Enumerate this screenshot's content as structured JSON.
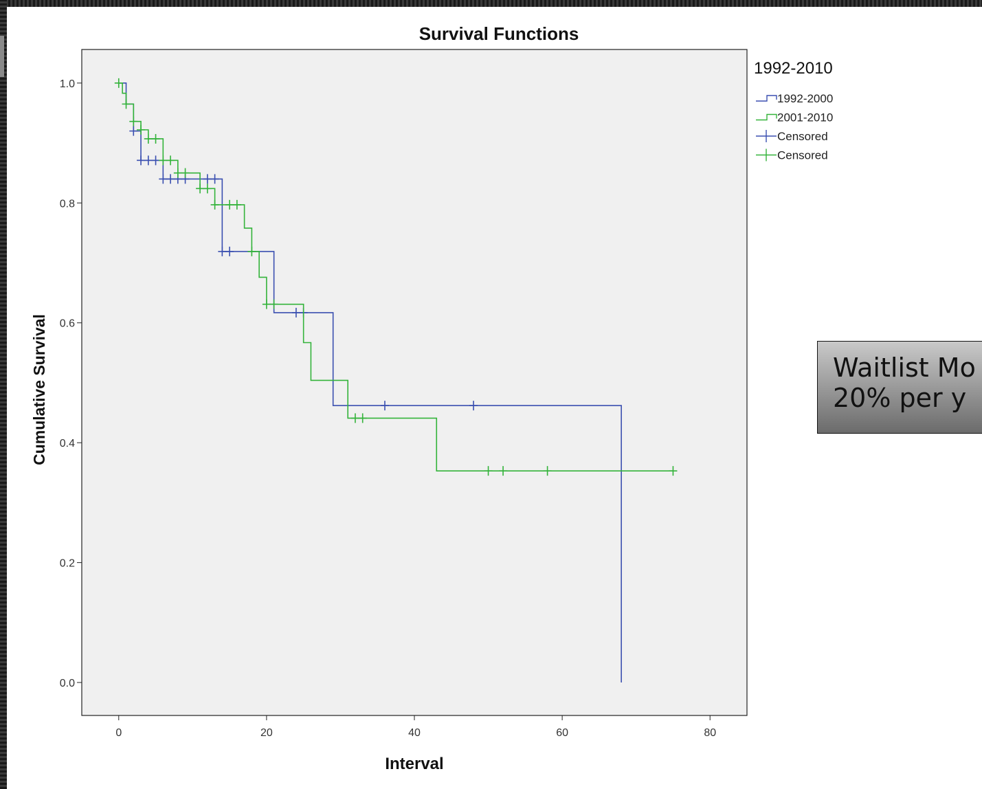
{
  "chart_data": {
    "type": "line",
    "subtype": "kaplan-meier step",
    "title": "Survival Functions",
    "xlabel": "Interval",
    "ylabel": "Cumulative Survival",
    "xlim": [
      -5,
      85
    ],
    "ylim": [
      -0.055,
      1.056
    ],
    "xticks": [
      0,
      20,
      40,
      60,
      80
    ],
    "yticks": [
      0.0,
      0.2,
      0.4,
      0.6,
      0.8,
      1.0
    ],
    "xtick_labels": [
      "0",
      "20",
      "40",
      "60",
      "80"
    ],
    "ytick_labels": [
      "0.0",
      "0.2",
      "0.4",
      "0.6",
      "0.8",
      "1.0"
    ],
    "grid": false,
    "background": "#f0f0f0",
    "legend_title": "1992-2010",
    "legend_position": "right",
    "series": [
      {
        "name": "1992-2000",
        "color": "#3a4fb0",
        "steps": [
          [
            0,
            1.0
          ],
          [
            1,
            0.965
          ],
          [
            2,
            0.92
          ],
          [
            3,
            0.871
          ],
          [
            6,
            0.84
          ],
          [
            14,
            0.719
          ],
          [
            21,
            0.617
          ],
          [
            29,
            0.462
          ],
          [
            68,
            0.0
          ]
        ],
        "censored": [
          [
            2,
            0.92
          ],
          [
            3,
            0.871
          ],
          [
            4,
            0.871
          ],
          [
            5,
            0.871
          ],
          [
            6,
            0.84
          ],
          [
            7,
            0.84
          ],
          [
            8,
            0.84
          ],
          [
            9,
            0.84
          ],
          [
            12,
            0.84
          ],
          [
            13,
            0.84
          ],
          [
            14,
            0.719
          ],
          [
            15,
            0.719
          ],
          [
            24,
            0.617
          ],
          [
            25,
            0.617
          ],
          [
            36,
            0.462
          ],
          [
            48,
            0.462
          ]
        ]
      },
      {
        "name": "2001-2010",
        "color": "#33b33a",
        "steps": [
          [
            0,
            1.0
          ],
          [
            0.5,
            0.983
          ],
          [
            1,
            0.965
          ],
          [
            2,
            0.936
          ],
          [
            3,
            0.922
          ],
          [
            4,
            0.907
          ],
          [
            6,
            0.871
          ],
          [
            8,
            0.85
          ],
          [
            11,
            0.824
          ],
          [
            13,
            0.797
          ],
          [
            17,
            0.758
          ],
          [
            18,
            0.719
          ],
          [
            19,
            0.676
          ],
          [
            20,
            0.631
          ],
          [
            25,
            0.567
          ],
          [
            26,
            0.504
          ],
          [
            31,
            0.441
          ],
          [
            43,
            0.353
          ],
          [
            75,
            0.353
          ]
        ],
        "censored": [
          [
            0,
            1.0
          ],
          [
            1,
            0.965
          ],
          [
            2,
            0.936
          ],
          [
            3,
            0.922
          ],
          [
            4,
            0.907
          ],
          [
            5,
            0.907
          ],
          [
            6,
            0.871
          ],
          [
            7,
            0.871
          ],
          [
            8,
            0.85
          ],
          [
            9,
            0.85
          ],
          [
            11,
            0.824
          ],
          [
            12,
            0.824
          ],
          [
            13,
            0.797
          ],
          [
            15,
            0.797
          ],
          [
            16,
            0.797
          ],
          [
            18,
            0.719
          ],
          [
            20,
            0.631
          ],
          [
            21,
            0.631
          ],
          [
            32,
            0.441
          ],
          [
            33,
            0.441
          ],
          [
            50,
            0.353
          ],
          [
            52,
            0.353
          ],
          [
            58,
            0.353
          ],
          [
            75,
            0.353
          ]
        ]
      }
    ],
    "legend": [
      {
        "label": "1992-2000",
        "kind": "step",
        "color": "#3a4fb0"
      },
      {
        "label": "2001-2010",
        "kind": "step",
        "color": "#33b33a"
      },
      {
        "label": "Censored",
        "kind": "cross",
        "color": "#3a4fb0"
      },
      {
        "label": "Censored",
        "kind": "cross",
        "color": "#33b33a"
      }
    ]
  },
  "callout": {
    "line1": "Waitlist Mo",
    "line2": "20% per y"
  }
}
